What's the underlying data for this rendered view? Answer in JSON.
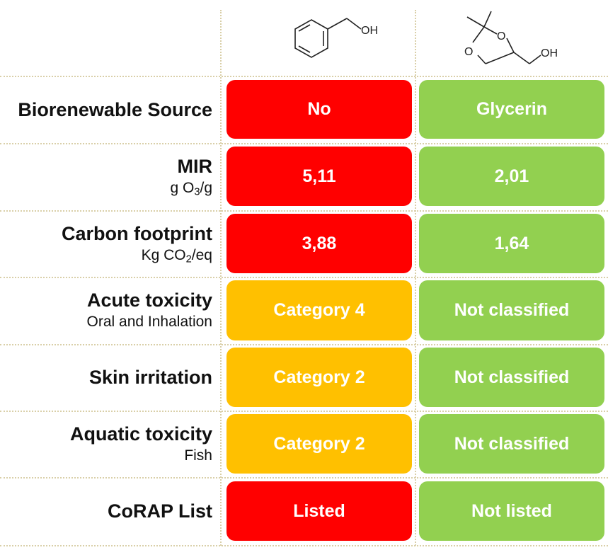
{
  "colors": {
    "red": "#ff0000",
    "yellow": "#ffc000",
    "green": "#92d050"
  },
  "structures": {
    "compound1_oh_label": "OH",
    "compound2_o_label": "O",
    "compound2_oh_label": "OH"
  },
  "rows": [
    {
      "label": "Biorenewable Source",
      "col1": "No",
      "col2": "Glycerin"
    },
    {
      "label": "MIR",
      "sub_a": "g O",
      "sub_sub": "3",
      "sub_b": "/g",
      "col1": "5,11",
      "col2": "2,01"
    },
    {
      "label": "Carbon footprint",
      "sub_a": "Kg CO",
      "sub_sub": "2",
      "sub_b": "/eq",
      "col1": "3,88",
      "col2": "1,64"
    },
    {
      "label": "Acute toxicity",
      "sub": "Oral and Inhalation",
      "col1": "Category 4",
      "col2": "Not classified"
    },
    {
      "label": "Skin irritation",
      "col1": "Category 2",
      "col2": "Not classified"
    },
    {
      "label": "Aquatic toxicity",
      "sub": "Fish",
      "col1": "Category 2",
      "col2": "Not classified"
    },
    {
      "label": "CoRAP List",
      "col1": "Listed",
      "col2": "Not listed"
    }
  ]
}
